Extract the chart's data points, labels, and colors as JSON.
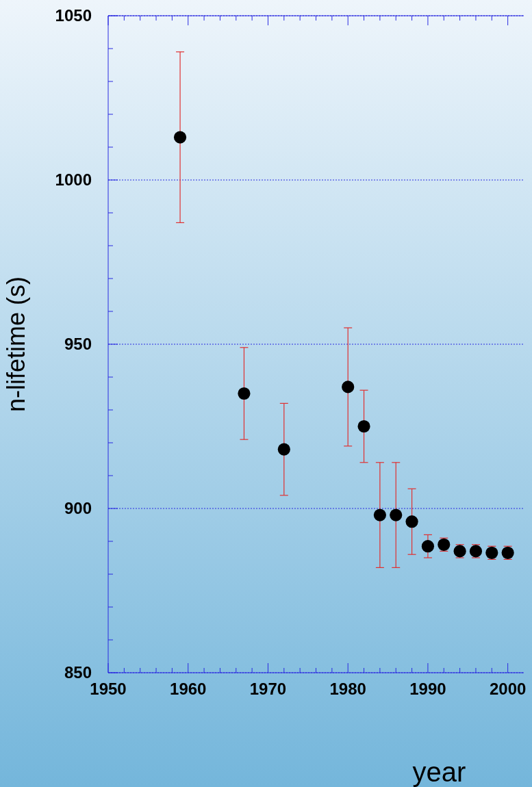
{
  "chart_data": {
    "type": "scatter",
    "xlabel": "year",
    "ylabel": "n-lifetime (s)",
    "x": [
      1959,
      1967,
      1972,
      1980,
      1982,
      1984,
      1986,
      1988,
      1990,
      1992,
      1994,
      1996,
      1998,
      2000
    ],
    "series": [
      {
        "color": "#000000",
        "values": [
          1013,
          935,
          918,
          937,
          925,
          898,
          898,
          896,
          888.5,
          889,
          887,
          887,
          886.5,
          886.5
        ],
        "errors": [
          26,
          14,
          14,
          18,
          11,
          16,
          16,
          10,
          3.5,
          2,
          2,
          2,
          2,
          2
        ]
      }
    ],
    "xlim": [
      1950,
      2002
    ],
    "xticks": [
      1950,
      1960,
      1970,
      1980,
      1990,
      2000
    ],
    "ylim": [
      850,
      1050
    ],
    "yticks": [
      850,
      900,
      950,
      1000,
      1050
    ],
    "grid": "y",
    "marker": "circle"
  }
}
